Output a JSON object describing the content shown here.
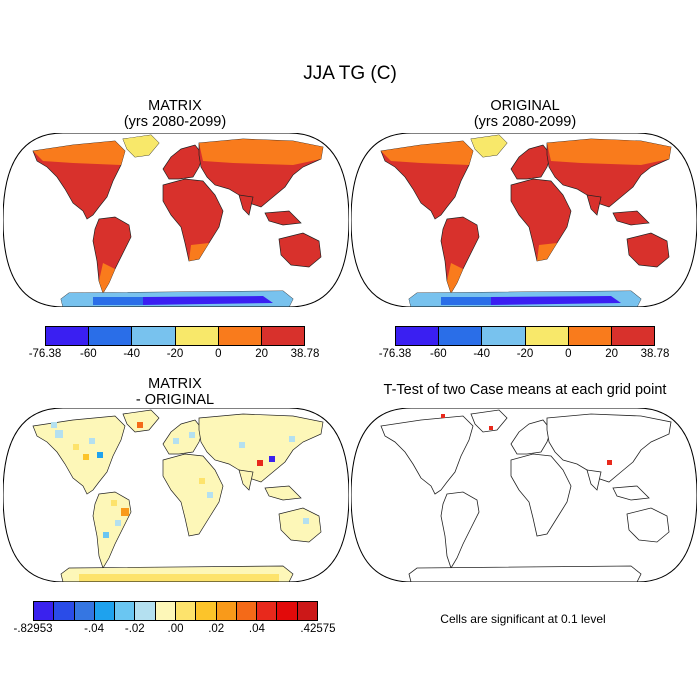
{
  "title": "JJA TG (C)",
  "panels": {
    "p1": {
      "title_line1": "MATRIX",
      "title_line2": "(yrs 2080-2099)"
    },
    "p2": {
      "title_line1": "ORIGINAL",
      "title_line2": "(yrs 2080-2099)"
    },
    "p3": {
      "title_line1": "MATRIX",
      "title_line2": "- ORIGINAL"
    },
    "p4": {
      "title_line1": "T-Test of two Case means at each grid point"
    }
  },
  "colorbar_top": {
    "colors": [
      "#3a1ff2",
      "#2a6ee8",
      "#78c2ee",
      "#f8e86a",
      "#f97b1c",
      "#d8312c"
    ],
    "labels": [
      "-76.38",
      "-60",
      "-40",
      "-20",
      "0",
      "20",
      "38.78"
    ]
  },
  "colorbar_diff": {
    "colors": [
      "#3a22ee",
      "#2a4ce8",
      "#3576e2",
      "#1ea2ee",
      "#6ac6f2",
      "#b4e0f0",
      "#fdf7b8",
      "#fde36c",
      "#fcc42a",
      "#f99a1a",
      "#f46a18",
      "#e8291c",
      "#e20a0a",
      "#cc1818"
    ],
    "labels": [
      "-.82953",
      "-.04",
      "-.02",
      ".00",
      ".02",
      ".04",
      ".42575"
    ]
  },
  "note": "Cells are significant at 0.1 level"
}
